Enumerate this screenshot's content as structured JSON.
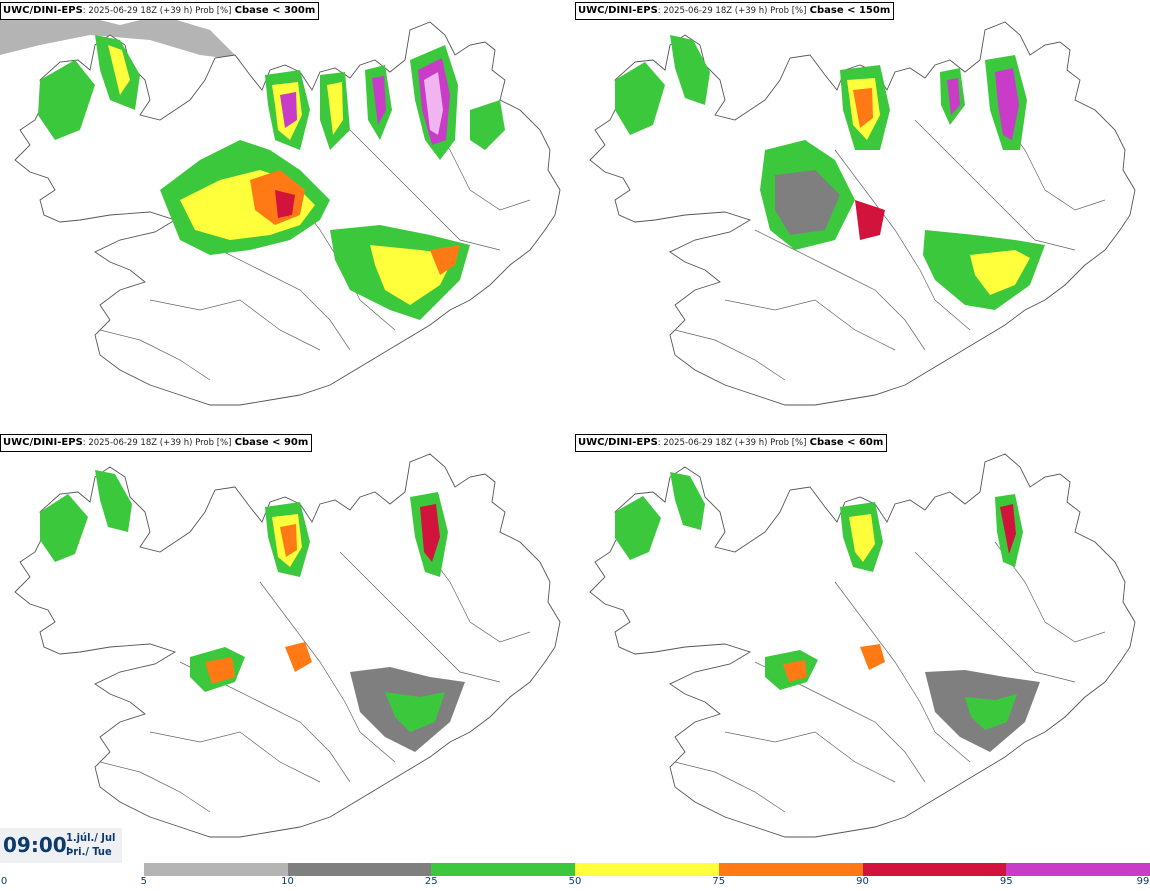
{
  "panels": [
    {
      "model": "UWC/DINI-EPS",
      "info": ": 2025-06-29 18Z (+39 h) Prob [%]",
      "param": "Cbase < 300m"
    },
    {
      "model": "UWC/DINI-EPS",
      "info": ": 2025-06-29 18Z (+39 h) Prob [%]",
      "param": "Cbase < 150m"
    },
    {
      "model": "UWC/DINI-EPS",
      "info": ": 2025-06-29 18Z (+39 h) Prob [%]",
      "param": "Cbase < 90m"
    },
    {
      "model": "UWC/DINI-EPS",
      "info": ": 2025-06-29 18Z (+39 h) Prob [%]",
      "param": "Cbase < 60m"
    }
  ],
  "valid_time": {
    "time": "09:00",
    "date_line1": "1.júl./ Jul",
    "date_line2": "Þri./ Tue"
  },
  "legend": {
    "ticks": [
      "0",
      "5",
      "10",
      "25",
      "50",
      "75",
      "90",
      "95",
      "99"
    ],
    "colors": [
      "#ffffff",
      "#b4b4b4",
      "#7f7f7f",
      "#3cc83c",
      "#ffff3c",
      "#ff7a14",
      "#d2143c",
      "#c83cc8",
      "#f0b4f0"
    ]
  }
}
